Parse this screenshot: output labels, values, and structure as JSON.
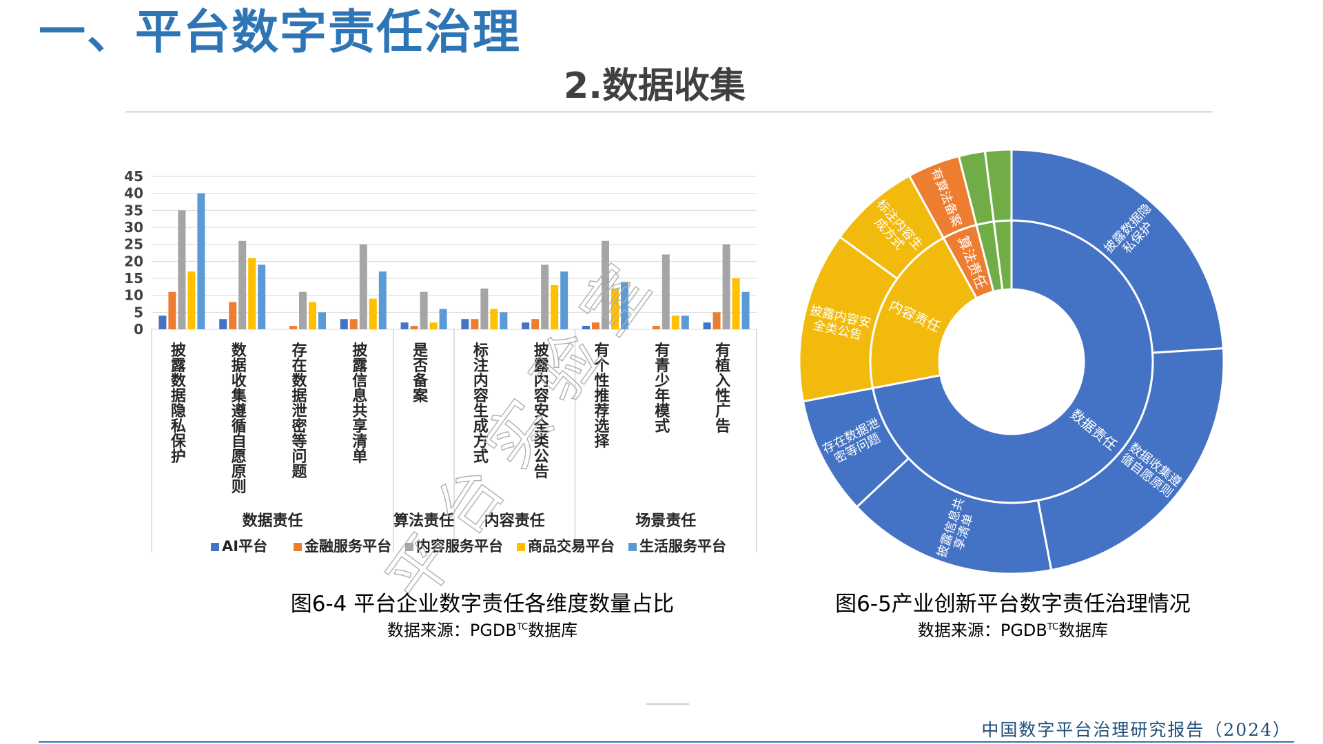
{
  "page": {
    "title": "一、平台数字责任治理",
    "section": "2.数据收集",
    "footer": "中国数字平台治理研究报告（2024）"
  },
  "watermark": {
    "text": "平台实验室"
  },
  "figure_left": {
    "caption": "图6-4 平台企业数字责任各维度数量占比",
    "source_prefix": "数据来源：PGDB",
    "source_sup": "TC",
    "source_suffix": "数据库"
  },
  "figure_right": {
    "caption": "图6-5产业创新平台数字责任治理情况",
    "source_prefix": "数据来源：PGDB",
    "source_sup": "TC",
    "source_suffix": "数据库"
  },
  "chart_data": [
    {
      "type": "bar",
      "categories": [
        "披露数据隐私保护",
        "数据收集遵循自愿原则",
        "存在数据泄密等问题",
        "披露信息共享清单",
        "是否备案",
        "标注内容生成方式",
        "披露内容安全类公告",
        "有个性推荐选择",
        "有青少年模式",
        "有植入性广告"
      ],
      "groups": [
        {
          "name": "数据责任",
          "span": [
            0,
            3
          ]
        },
        {
          "name": "算法责任",
          "span": [
            4,
            4
          ]
        },
        {
          "name": "内容责任",
          "span": [
            5,
            6
          ]
        },
        {
          "name": "场景责任",
          "span": [
            7,
            9
          ]
        }
      ],
      "series": [
        {
          "name": "AI平台",
          "color": "#4472C4",
          "values": [
            4,
            3,
            0,
            3,
            2,
            3,
            2,
            1,
            0,
            2
          ]
        },
        {
          "name": "金融服务平台",
          "color": "#ED7D31",
          "values": [
            11,
            8,
            1,
            3,
            1,
            3,
            3,
            2,
            1,
            5
          ]
        },
        {
          "name": "内容服务平台",
          "color": "#A5A5A5",
          "values": [
            35,
            26,
            11,
            25,
            11,
            12,
            19,
            26,
            22,
            25
          ]
        },
        {
          "name": "商品交易平台",
          "color": "#FFC000",
          "values": [
            17,
            21,
            8,
            9,
            2,
            6,
            13,
            12,
            4,
            15
          ]
        },
        {
          "name": "生活服务平台",
          "color": "#5B9BD5",
          "values": [
            40,
            19,
            5,
            17,
            6,
            5,
            17,
            14,
            4,
            11
          ]
        }
      ],
      "ylim": [
        0,
        45
      ],
      "yticks": [
        0,
        5,
        10,
        15,
        20,
        25,
        30,
        35,
        40,
        45
      ],
      "grid": true,
      "legend": "bottom"
    },
    {
      "type": "sunburst",
      "inner": [
        {
          "name": "数据责任",
          "value": 72,
          "color": "#4472C4"
        },
        {
          "name": "内容责任",
          "value": 20,
          "color": "#F2BA0C"
        },
        {
          "name": "算法责任",
          "value": 4,
          "color": "#ED7D31"
        },
        {
          "name": "",
          "value": 2,
          "color": "#70AD47"
        },
        {
          "name": "",
          "value": 2,
          "color": "#70AD47"
        }
      ],
      "outer": [
        {
          "name": "披露数据隐私保护",
          "value": 24,
          "color": "#4472C4"
        },
        {
          "name": "数据收集遵循自愿原则",
          "value": 23,
          "color": "#4472C4"
        },
        {
          "name": "披露信息共享清单",
          "value": 16,
          "color": "#4472C4"
        },
        {
          "name": "存在数据泄密等问题",
          "value": 9,
          "color": "#4472C4"
        },
        {
          "name": "披露内容安全类公告",
          "value": 13,
          "color": "#F2BA0C"
        },
        {
          "name": "标注内容生成方式",
          "value": 7,
          "color": "#F2BA0C"
        },
        {
          "name": "有算法备案",
          "value": 4,
          "color": "#ED7D31"
        },
        {
          "name": "",
          "value": 2,
          "color": "#70AD47"
        },
        {
          "name": "",
          "value": 2,
          "color": "#70AD47"
        }
      ]
    }
  ]
}
